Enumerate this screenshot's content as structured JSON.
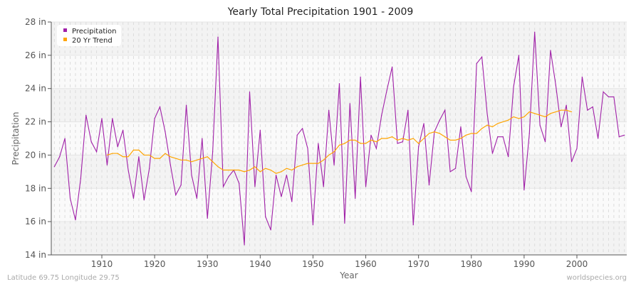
{
  "chart_data": {
    "type": "line",
    "title": "Yearly Total Precipitation 1901 - 2009",
    "xlabel": "Year",
    "ylabel": "Precipitation",
    "xlim": [
      1901,
      2009
    ],
    "ylim": [
      14,
      28
    ],
    "x_ticks": [
      "1910",
      "1920",
      "1930",
      "1940",
      "1950",
      "1960",
      "1970",
      "1980",
      "1990",
      "2000"
    ],
    "y_ticks": [
      "14 in",
      "16 in",
      "18 in",
      "20 in",
      "22 in",
      "24 in",
      "26 in",
      "28 in"
    ],
    "grid": true,
    "legend_position": "top-left",
    "series": [
      {
        "name": "Precipitation",
        "color": "#a020a8",
        "start_year": 1901,
        "values": [
          19.3,
          19.9,
          21.0,
          17.4,
          16.1,
          18.6,
          22.4,
          20.8,
          20.2,
          22.2,
          19.4,
          22.2,
          20.5,
          21.5,
          19.1,
          17.4,
          19.9,
          17.3,
          19.2,
          22.2,
          22.9,
          21.4,
          19.4,
          17.6,
          18.2,
          23.0,
          18.8,
          17.4,
          21.0,
          16.2,
          20.2,
          27.1,
          18.1,
          18.7,
          19.1,
          18.3,
          14.6,
          23.8,
          18.1,
          21.5,
          16.3,
          15.5,
          18.8,
          17.5,
          18.8,
          17.2,
          21.2,
          21.6,
          20.4,
          15.8,
          20.7,
          18.1,
          22.7,
          19.4,
          24.3,
          15.9,
          23.1,
          17.4,
          24.7,
          18.1,
          21.2,
          20.4,
          22.4,
          23.9,
          25.3,
          20.7,
          20.8,
          22.7,
          15.8,
          20.5,
          21.9,
          18.2,
          21.4,
          22.1,
          22.7,
          19.0,
          19.2,
          21.7,
          18.7,
          17.8,
          25.5,
          25.9,
          22.5,
          20.1,
          21.1,
          21.1,
          19.9,
          24.1,
          26.0,
          17.9,
          21.3,
          27.4,
          21.8,
          20.8,
          26.3,
          24.2,
          21.7,
          23.0,
          19.6,
          20.4,
          24.7,
          22.7,
          22.9,
          21.0,
          23.8,
          23.5,
          23.5,
          21.1,
          21.2
        ]
      },
      {
        "name": "20 Yr Trend",
        "color": "#ffa500",
        "start_year": 1911,
        "values": [
          20.0,
          20.1,
          20.1,
          19.9,
          19.9,
          20.3,
          20.3,
          20.0,
          20.0,
          19.8,
          19.8,
          20.1,
          19.9,
          19.8,
          19.7,
          19.7,
          19.6,
          19.7,
          19.8,
          19.9,
          19.6,
          19.3,
          19.1,
          19.1,
          19.1,
          19.1,
          19.0,
          19.1,
          19.3,
          19.0,
          19.2,
          19.1,
          18.9,
          19.0,
          19.2,
          19.1,
          19.3,
          19.4,
          19.5,
          19.5,
          19.5,
          19.7,
          20.0,
          20.2,
          20.6,
          20.7,
          20.9,
          20.9,
          20.7,
          20.7,
          20.9,
          20.8,
          21.0,
          21.0,
          21.1,
          20.9,
          21.0,
          20.9,
          21.0,
          20.7,
          21.0,
          21.3,
          21.4,
          21.3,
          21.1,
          20.9,
          20.9,
          21.0,
          21.2,
          21.3,
          21.3,
          21.6,
          21.8,
          21.7,
          21.9,
          22.0,
          22.1,
          22.3,
          22.2,
          22.3,
          22.6,
          22.5,
          22.4,
          22.3,
          22.5,
          22.6,
          22.7,
          22.7,
          22.6
        ]
      }
    ]
  },
  "footer": {
    "location": "Latitude 69.75 Longitude 29.75",
    "source": "worldspecies.org"
  }
}
